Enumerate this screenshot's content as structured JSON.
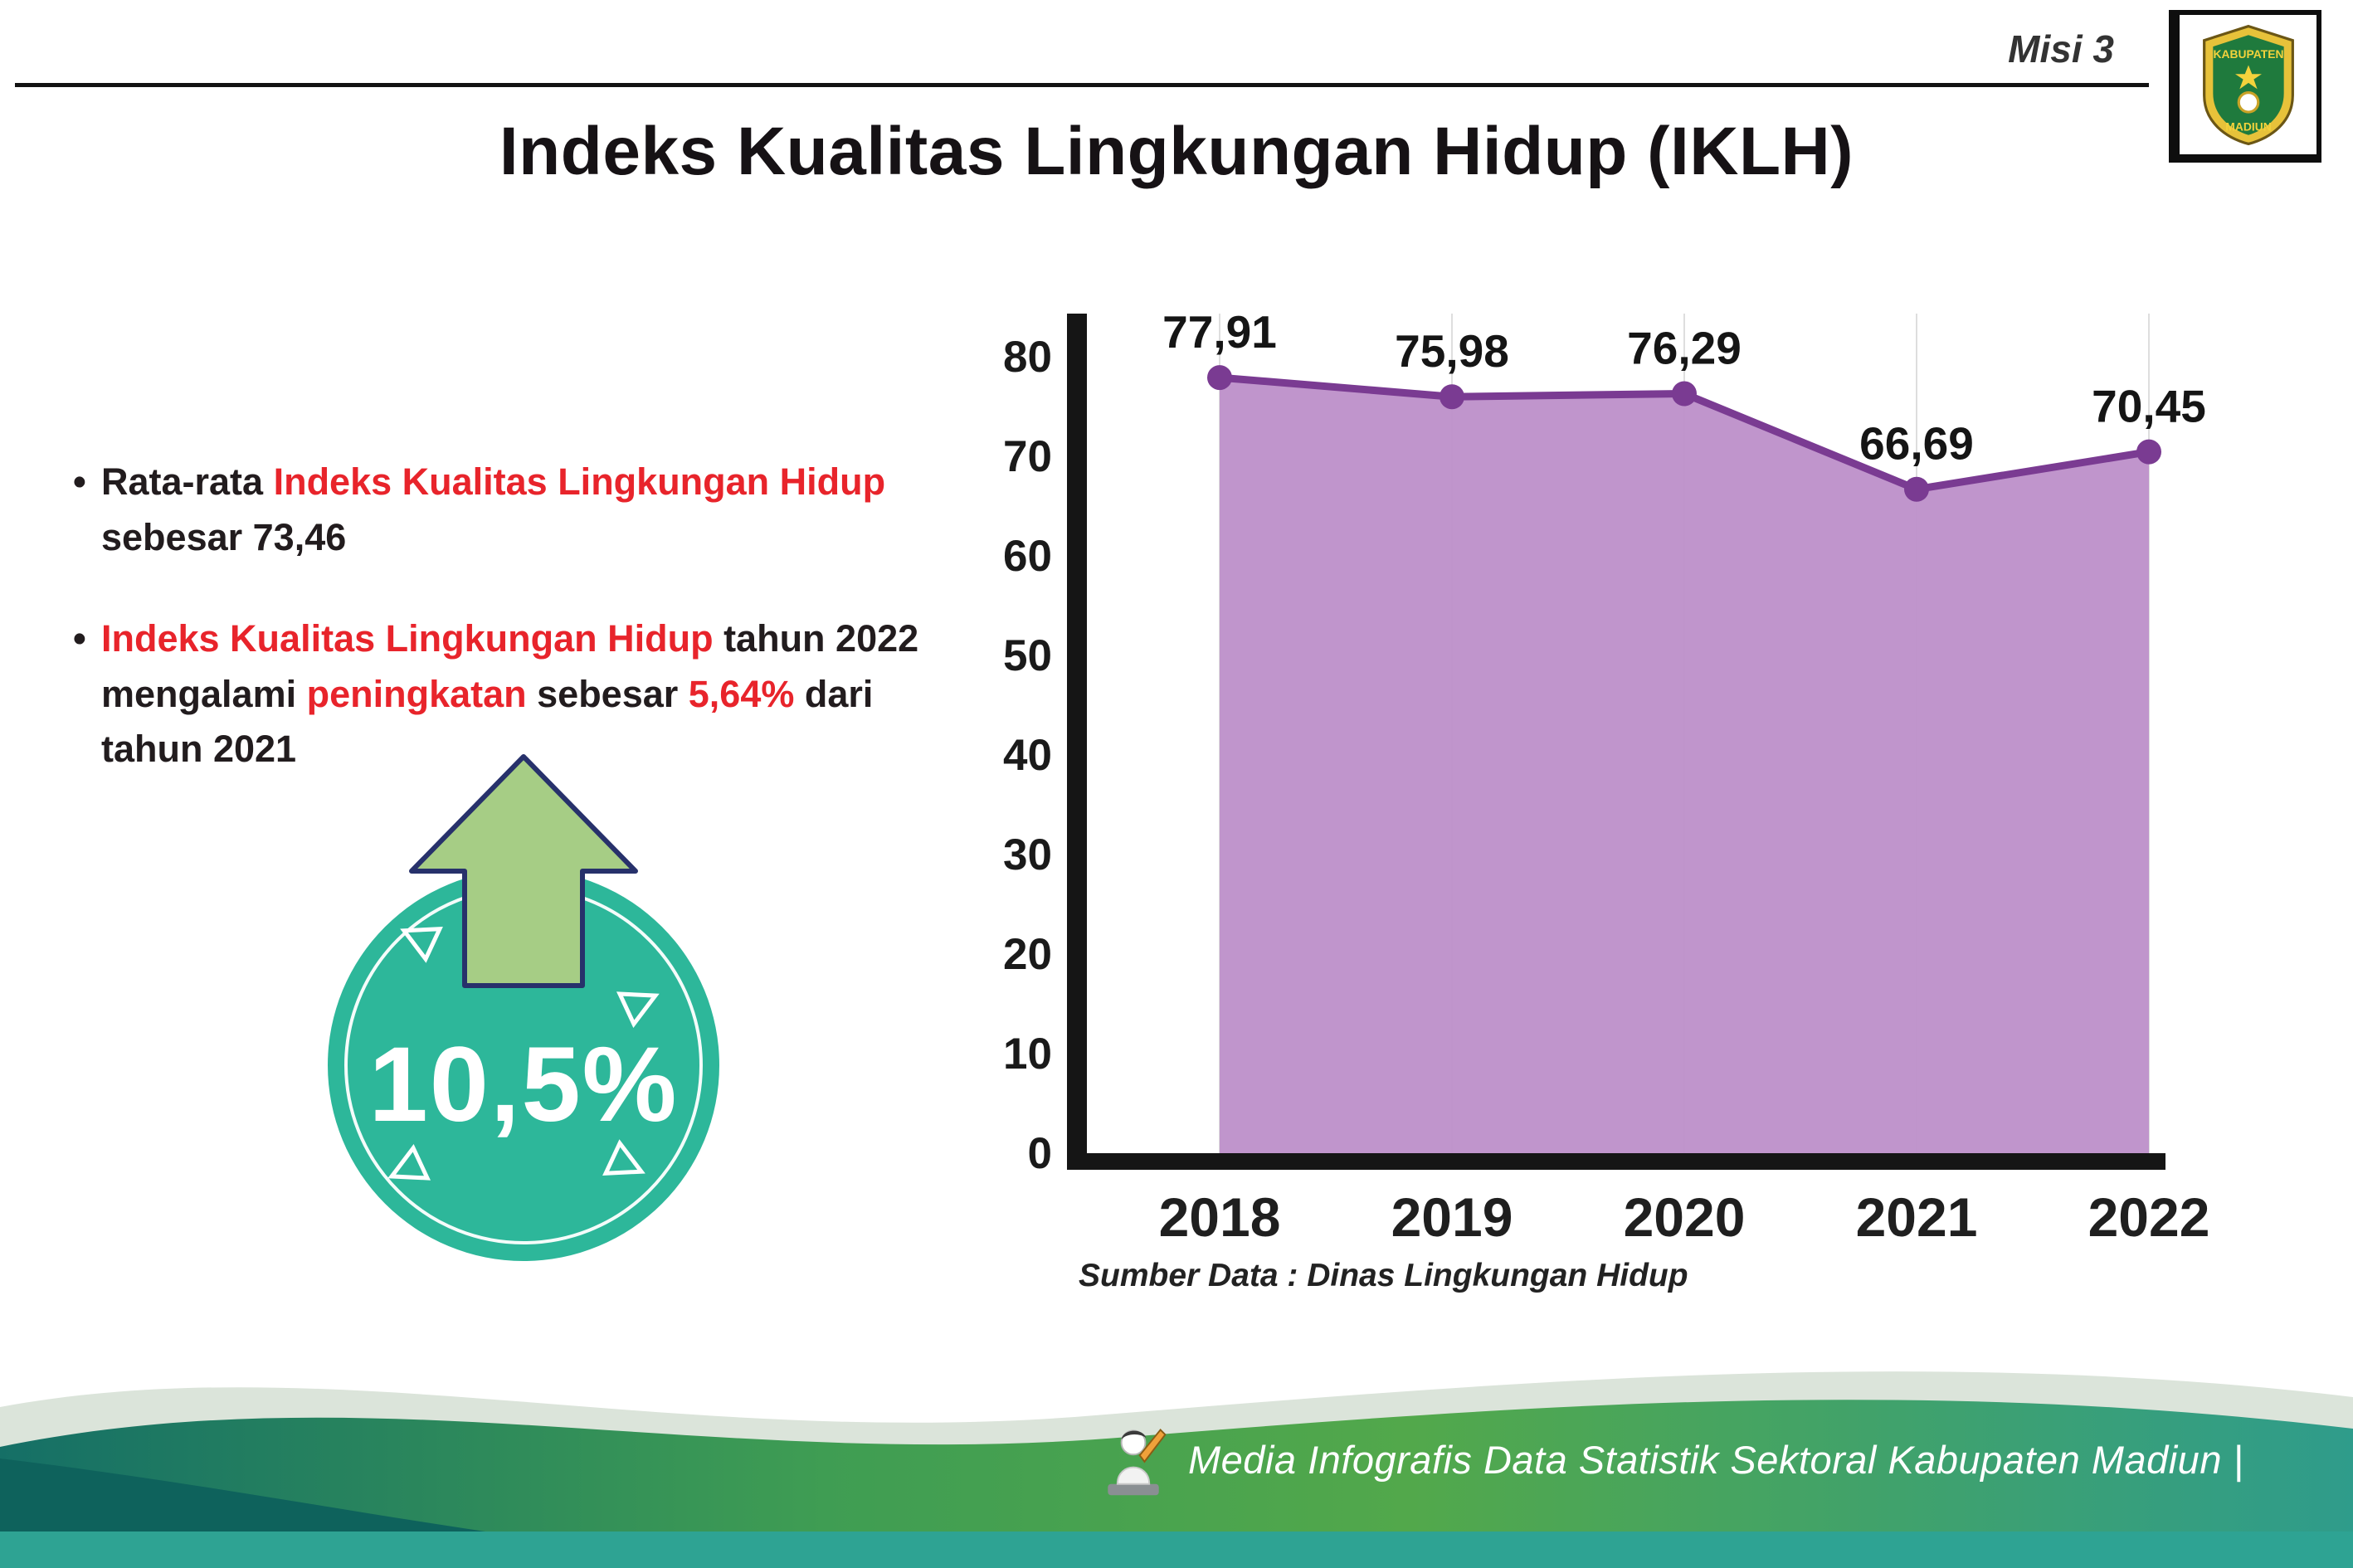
{
  "header": {
    "misi_label": "Misi 3",
    "title": "Indeks Kualitas Lingkungan Hidup (IKLH)"
  },
  "logo": {
    "name": "Kabupaten Madiun",
    "top_text": "KABUPATEN",
    "bottom_text": "MADIUN"
  },
  "bullets": [
    {
      "segments": [
        {
          "text": "Rata-rata ",
          "red": false
        },
        {
          "text": "Indeks Kualitas Lingkungan Hidup",
          "red": true
        },
        {
          "text": " sebesar 73,46",
          "red": false
        }
      ]
    },
    {
      "segments": [
        {
          "text": "Indeks Kualitas Lingkungan Hidup",
          "red": true
        },
        {
          "text": " tahun 2022 mengalami ",
          "red": false
        },
        {
          "text": "peningkatan",
          "red": true
        },
        {
          "text": " sebesar ",
          "red": false
        },
        {
          "text": "5,64%",
          "red": true
        },
        {
          "text": " dari tahun 2021",
          "red": false
        }
      ]
    }
  ],
  "badge": {
    "value": "10,5%"
  },
  "chart_data": {
    "type": "area",
    "categories": [
      "2018",
      "2019",
      "2020",
      "2021",
      "2022"
    ],
    "values": [
      77.91,
      75.98,
      76.29,
      66.69,
      70.45
    ],
    "labels": [
      "77,91",
      "75,98",
      "76,29",
      "66,69",
      "70,45"
    ],
    "ylim": [
      0,
      80
    ],
    "yticks": [
      0,
      10,
      20,
      30,
      40,
      50,
      60,
      70,
      80
    ],
    "xlabel": "",
    "ylabel": "",
    "grid": "vertical-light",
    "legend": "none",
    "fill_color": "#bd8fc9",
    "line_color": "#7a3b92",
    "source": "Sumber Data : Dinas Lingkungan Hidup"
  },
  "footer": {
    "text": "Media Infografis Data Statistik Sektoral Kabupaten Madiun |"
  },
  "colors": {
    "red_text": "#e8242b",
    "badge_teal": "#2db79a",
    "arrow_green": "#a6cd85",
    "arrow_outline": "#27316b",
    "axis_black": "#151515",
    "wave_green": "#4aa24e",
    "wave_teal": "#2ea393",
    "wave_dark": "#0e625c"
  },
  "icons": {
    "badge_arrow": "up-arrow",
    "header_logo": "kabupaten-madiun-crest",
    "footer_mascot": "writer-mascot"
  }
}
